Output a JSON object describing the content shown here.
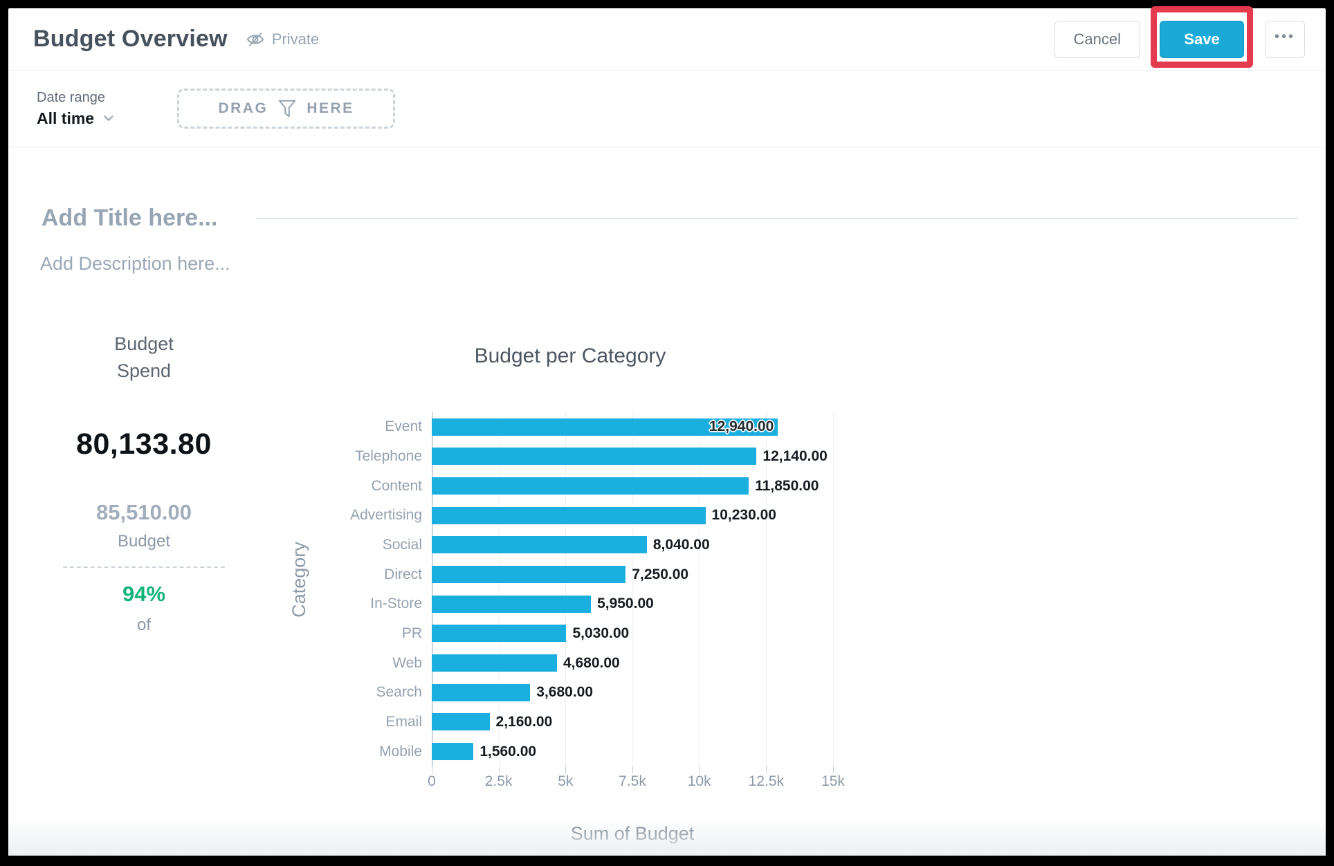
{
  "header": {
    "title": "Budget Overview",
    "privacy_label": "Private",
    "cancel_label": "Cancel",
    "save_label": "Save",
    "more_label": "•••"
  },
  "filter_bar": {
    "date_range_label": "Date range",
    "date_range_value": "All time",
    "drop_zone_word_left": "DRAG",
    "drop_zone_word_right": "HERE"
  },
  "document": {
    "title_placeholder": "Add Title here...",
    "description_placeholder": "Add Description here..."
  },
  "kpi": {
    "title_line1": "Budget",
    "title_line2": "Spend",
    "value": "80,133.80",
    "secondary_value": "85,510.00",
    "secondary_label": "Budget",
    "percent": "94%",
    "percent_suffix": "of"
  },
  "colors": {
    "bar_accent": "#1BAFE0",
    "save_button": "#1BA9D8",
    "annotation_red": "#E5394E",
    "percent_green": "#10B478"
  },
  "chart_data": {
    "type": "bar",
    "orientation": "horizontal",
    "title": "Budget per Category",
    "categories": [
      "Event",
      "Telephone",
      "Content",
      "Advertising",
      "Social",
      "Direct",
      "In-Store",
      "PR",
      "Web",
      "Search",
      "Email",
      "Mobile"
    ],
    "values": [
      12940,
      12140,
      11850,
      10230,
      8040,
      7250,
      5950,
      5030,
      4680,
      3680,
      2160,
      1560
    ],
    "value_labels": [
      "12,940.00",
      "12,140.00",
      "11,850.00",
      "10,230.00",
      "8,040.00",
      "7,250.00",
      "5,950.00",
      "5,030.00",
      "4,680.00",
      "3,680.00",
      "2,160.00",
      "1,560.00"
    ],
    "xlabel": "Sum of Budget",
    "ylabel": "Category",
    "xlim": [
      0,
      15000
    ],
    "x_ticks": [
      0,
      2500,
      5000,
      7500,
      10000,
      12500,
      15000
    ],
    "x_tick_labels": [
      "0",
      "2.5k",
      "5k",
      "7.5k",
      "10k",
      "12.5k",
      "15k"
    ],
    "grid": true,
    "legend": false,
    "first_label_inside": true
  }
}
